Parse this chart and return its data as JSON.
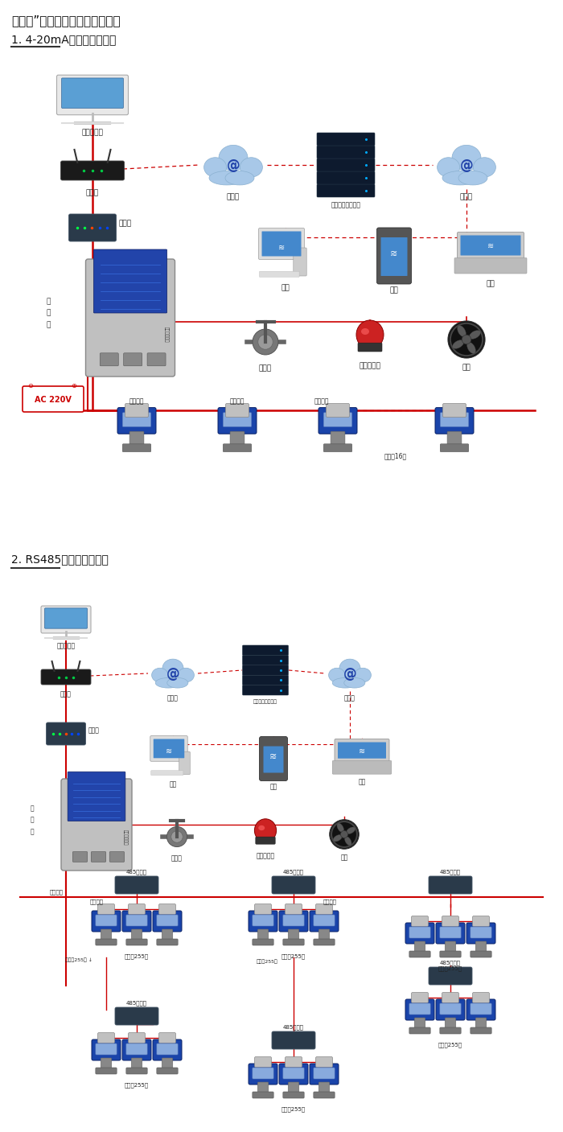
{
  "title1": "机气猫”系列带显示固定式检测仪",
  "section1_title": "1. 4-20mA信号连接系统图",
  "section2_title": "2. RS485信号连接系统图",
  "bg_color": "#ffffff",
  "text_color": "#222222",
  "red_line_color": "#cc0000",
  "dashed_line_color": "#cc0000",
  "font_title": 11,
  "font_section": 10,
  "font_label": 6.5
}
